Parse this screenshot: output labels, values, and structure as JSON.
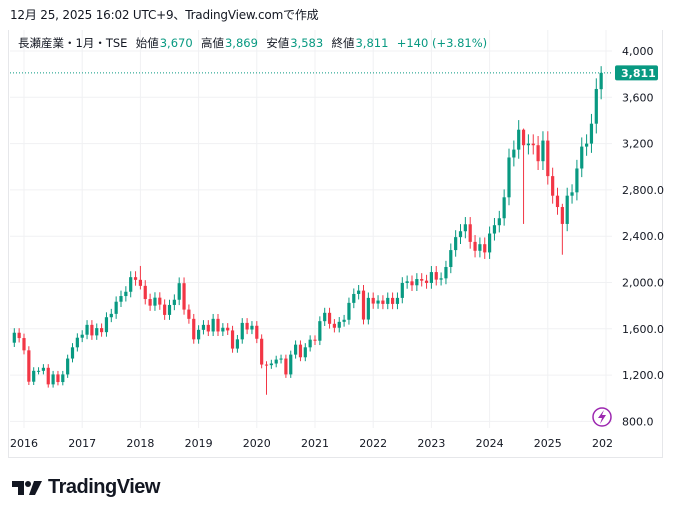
{
  "header": {
    "caption": "12月 25, 2025 16:02 UTC+9、TradingView.comで作成"
  },
  "legend": {
    "symbol": "長瀬産業・1月・TSE",
    "open_label": "始値",
    "open": "3,670",
    "high_label": "高値",
    "high": "3,869",
    "low_label": "安値",
    "low": "3,583",
    "close_label": "終値",
    "close": "3,811",
    "change": "+140 (+3.81%)"
  },
  "colors": {
    "up": "#089981",
    "down": "#F23645",
    "grid": "#f0f1f3",
    "price_tag": "#089981",
    "icon": "#9c27b0"
  },
  "price_tag": "3,811",
  "brand": "TradingView",
  "chart_data": {
    "type": "candlestick",
    "interval": "1 month",
    "start_month": "2015-11",
    "first_open": 1480,
    "closes": [
      1566,
      1520,
      1414,
      1143,
      1237,
      1237,
      1263,
      1120,
      1206,
      1140,
      1206,
      1343,
      1440,
      1523,
      1549,
      1634,
      1543,
      1606,
      1571,
      1700,
      1729,
      1834,
      1883,
      1920,
      2046,
      2023,
      1971,
      1857,
      1800,
      1869,
      1809,
      1720,
      1806,
      1851,
      1994,
      1766,
      1686,
      1509,
      1591,
      1634,
      1577,
      1686,
      1577,
      1609,
      1586,
      1429,
      1509,
      1651,
      1594,
      1626,
      1514,
      1291,
      1286,
      1300,
      1334,
      1343,
      1206,
      1377,
      1463,
      1354,
      1440,
      1506,
      1497,
      1666,
      1738,
      1643,
      1609,
      1660,
      1678,
      1824,
      1901,
      1930,
      1680,
      1867,
      1818,
      1844,
      1815,
      1867,
      1815,
      1867,
      1996,
      2010,
      1976,
      2030,
      2016,
      1996,
      2090,
      2025,
      2036,
      2134,
      2280,
      2392,
      2443,
      2503,
      2351,
      2274,
      2331,
      2260,
      2423,
      2495,
      2555,
      2736,
      3080,
      3148,
      3320,
      3186,
      3200,
      3186,
      3048,
      3226,
      2919,
      2750,
      2652,
      2506,
      2750,
      2779,
      2985,
      3174,
      3200,
      3372,
      3672,
      3811
    ],
    "wick_overrides": {
      "2018-01": [
        2143,
        1940
      ],
      "2020-03": [
        1320,
        1030
      ],
      "2024-08": [
        3330,
        2506
      ],
      "2025-04": [
        2680,
        2240
      ],
      "2025-12": [
        3869,
        3583
      ]
    },
    "last": {
      "open": 3670,
      "high": 3869,
      "low": 3583,
      "close": 3811
    },
    "y_ticks": [
      4000,
      3600,
      3200,
      2800,
      2400,
      2000,
      1600,
      1200,
      800
    ],
    "y_tick_labels": [
      "4,000",
      "3,600",
      "3,200",
      "2,800.0",
      "2,400.0",
      "2,000.0",
      "1,600.0",
      "1,200.0",
      "800.0"
    ],
    "x_tick_labels": [
      "2016",
      "2017",
      "2018",
      "2019",
      "2020",
      "2021",
      "2022",
      "2023",
      "2024",
      "2025",
      "202"
    ],
    "ylim": [
      800,
      4000
    ],
    "grid": true
  }
}
